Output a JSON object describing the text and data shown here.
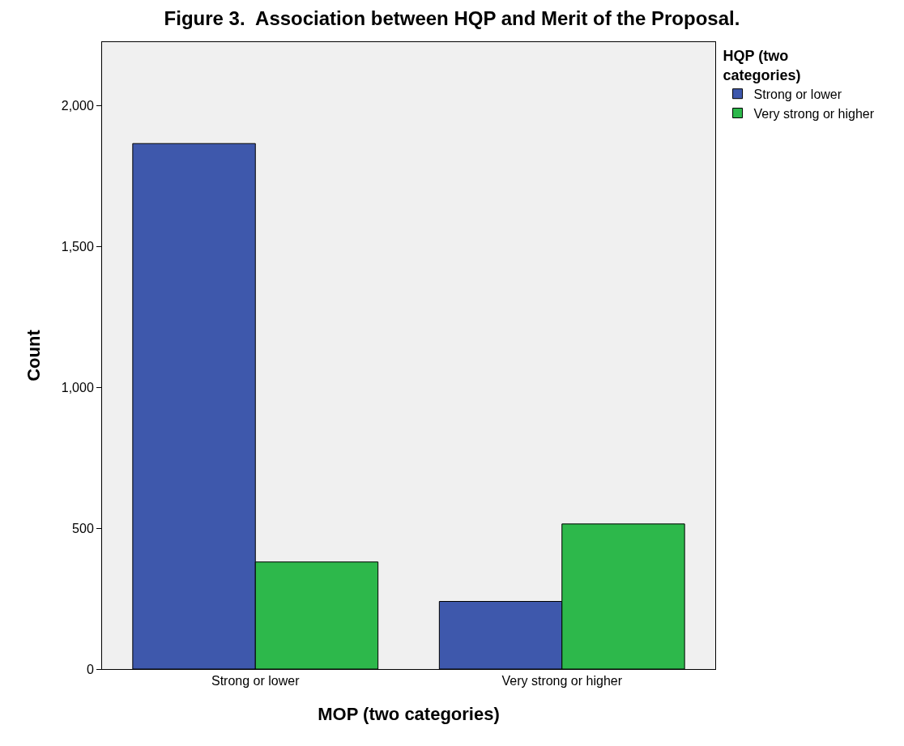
{
  "chart_data": {
    "type": "bar",
    "title": "Figure 3.  Association between HQP and Merit of the Proposal.",
    "xlabel": "MOP (two categories)",
    "ylabel": "Count",
    "legend_title": "HQP (two categories)",
    "categories": [
      "Strong or lower",
      "Very strong or higher"
    ],
    "series": [
      {
        "name": "Strong or lower",
        "color": "#3e58ac",
        "values": [
          1865,
          240
        ]
      },
      {
        "name": "Very strong or higher",
        "color": "#2db84b",
        "values": [
          380,
          515
        ]
      }
    ],
    "ylim": [
      0,
      2225
    ],
    "yticks": [
      0,
      {
        "value": 500,
        "label": "500"
      },
      {
        "value": 1000,
        "label": "1,000"
      },
      {
        "value": 1500,
        "label": "1,500"
      },
      {
        "value": 2000,
        "label": "2,000"
      }
    ],
    "grid": false,
    "legend": "top right"
  }
}
